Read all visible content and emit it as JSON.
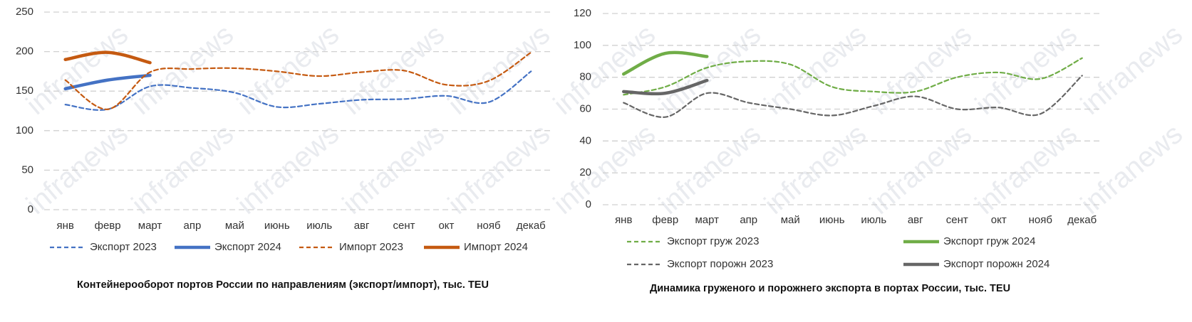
{
  "watermark": "infranews",
  "chart_data": [
    {
      "type": "line",
      "title": "Контейнерооборот портов России по направлениям (экспорт/импорт), тыс. TEU",
      "categories": [
        "янв",
        "февр",
        "март",
        "апр",
        "май",
        "июнь",
        "июль",
        "авг",
        "сент",
        "окт",
        "нояб",
        "декаб"
      ],
      "series": [
        {
          "name": "Экспорт 2023",
          "color": "#4472c4",
          "style": "dashed",
          "values": [
            133,
            127,
            156,
            154,
            148,
            130,
            134,
            139,
            140,
            144,
            136,
            175
          ]
        },
        {
          "name": "Экспорт 2024",
          "color": "#4472c4",
          "style": "solid",
          "values": [
            153,
            164,
            170,
            null,
            null,
            null,
            null,
            null,
            null,
            null,
            null,
            null
          ]
        },
        {
          "name": "Импорт 2023",
          "color": "#c55a11",
          "style": "dashed",
          "values": [
            164,
            127,
            174,
            178,
            179,
            175,
            169,
            174,
            176,
            158,
            163,
            199
          ]
        },
        {
          "name": "Импорт 2024",
          "color": "#c55a11",
          "style": "solid",
          "values": [
            190,
            199,
            186,
            null,
            null,
            null,
            null,
            null,
            null,
            null,
            null,
            null
          ]
        }
      ],
      "ylim": [
        0,
        250
      ],
      "yticks": [
        0,
        50,
        100,
        150,
        200,
        250
      ],
      "grid": true,
      "legend": "bottom"
    },
    {
      "type": "line",
      "title": "Динамика груженого и порожнего экспорта в портах России, тыс. TEU",
      "categories": [
        "янв",
        "февр",
        "март",
        "апр",
        "май",
        "июнь",
        "июль",
        "авг",
        "сент",
        "окт",
        "нояб",
        "декаб"
      ],
      "series": [
        {
          "name": "Экспорт груж 2023",
          "color": "#70ad47",
          "style": "dashed",
          "values": [
            69,
            74,
            86,
            90,
            88,
            74,
            71,
            71,
            80,
            83,
            79,
            92
          ]
        },
        {
          "name": "Экспорт груж 2024",
          "color": "#70ad47",
          "style": "solid",
          "values": [
            82,
            95,
            93,
            null,
            null,
            null,
            null,
            null,
            null,
            null,
            null,
            null
          ]
        },
        {
          "name": "Экспорт порожн 2023",
          "color": "#666666",
          "style": "dashed",
          "values": [
            64,
            55,
            70,
            64,
            60,
            56,
            62,
            68,
            60,
            61,
            57,
            81
          ]
        },
        {
          "name": "Экспорт порожн 2024",
          "color": "#666666",
          "style": "solid",
          "values": [
            71,
            70,
            78,
            null,
            null,
            null,
            null,
            null,
            null,
            null,
            null,
            null
          ]
        }
      ],
      "ylim": [
        0,
        120
      ],
      "yticks": [
        0,
        20,
        40,
        60,
        80,
        100,
        120
      ],
      "grid": true,
      "legend": "bottom"
    }
  ]
}
